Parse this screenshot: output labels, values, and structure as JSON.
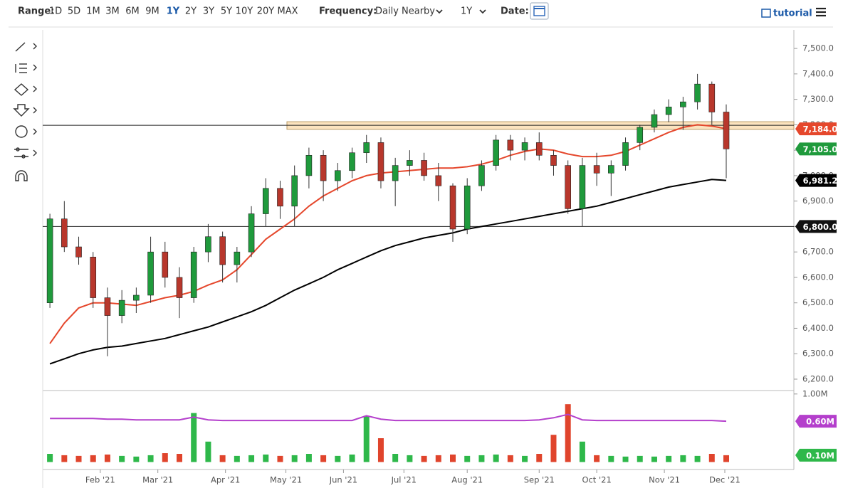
{
  "toolbar": {
    "range_label": "Range:",
    "ranges": [
      "1D",
      "5D",
      "1M",
      "3M",
      "6M",
      "9M",
      "1Y",
      "2Y",
      "3Y",
      "5Y",
      "10Y",
      "20Y",
      "MAX"
    ],
    "frequency_label": "Frequency:",
    "frequency": "Daily Nearby",
    "period": "1Y",
    "date_label": "Date:",
    "tutorial": "tutorial"
  },
  "chart_data": {
    "type": "candlestick",
    "up_color": "#1f9a3c",
    "down_color": "#b8372c",
    "candles": [
      [
        6500,
        6850,
        6480,
        6830
      ],
      [
        6830,
        6900,
        6700,
        6720
      ],
      [
        6720,
        6760,
        6650,
        6680
      ],
      [
        6680,
        6700,
        6480,
        6520
      ],
      [
        6520,
        6560,
        6290,
        6450
      ],
      [
        6450,
        6550,
        6420,
        6510
      ],
      [
        6510,
        6560,
        6460,
        6530
      ],
      [
        6530,
        6760,
        6500,
        6700
      ],
      [
        6700,
        6740,
        6560,
        6600
      ],
      [
        6600,
        6640,
        6440,
        6520
      ],
      [
        6520,
        6720,
        6500,
        6700
      ],
      [
        6700,
        6810,
        6660,
        6760
      ],
      [
        6760,
        6780,
        6580,
        6650
      ],
      [
        6650,
        6720,
        6580,
        6700
      ],
      [
        6700,
        6880,
        6680,
        6850
      ],
      [
        6850,
        6990,
        6800,
        6950
      ],
      [
        6950,
        6980,
        6830,
        6880
      ],
      [
        6880,
        7040,
        6800,
        7000
      ],
      [
        7000,
        7110,
        6950,
        7080
      ],
      [
        7080,
        7100,
        6900,
        6980
      ],
      [
        6980,
        7050,
        6940,
        7020
      ],
      [
        7020,
        7110,
        6990,
        7090
      ],
      [
        7090,
        7160,
        7050,
        7130
      ],
      [
        7130,
        7150,
        6950,
        6980
      ],
      [
        6980,
        7070,
        6880,
        7040
      ],
      [
        7040,
        7100,
        7000,
        7060
      ],
      [
        7060,
        7090,
        6980,
        7000
      ],
      [
        7000,
        7050,
        6900,
        6960
      ],
      [
        6960,
        6970,
        6740,
        6790
      ],
      [
        6790,
        6990,
        6770,
        6960
      ],
      [
        6960,
        7060,
        6940,
        7040
      ],
      [
        7040,
        7160,
        7020,
        7140
      ],
      [
        7140,
        7160,
        7060,
        7100
      ],
      [
        7100,
        7150,
        7060,
        7130
      ],
      [
        7130,
        7170,
        7060,
        7080
      ],
      [
        7080,
        7100,
        7000,
        7040
      ],
      [
        7040,
        7060,
        6850,
        6870
      ],
      [
        6870,
        7070,
        6800,
        7040
      ],
      [
        7040,
        7090,
        6960,
        7010
      ],
      [
        7010,
        7060,
        6920,
        7040
      ],
      [
        7040,
        7150,
        7020,
        7130
      ],
      [
        7130,
        7200,
        7100,
        7190
      ],
      [
        7190,
        7260,
        7170,
        7240
      ],
      [
        7240,
        7300,
        7210,
        7270
      ],
      [
        7270,
        7310,
        7180,
        7290
      ],
      [
        7290,
        7400,
        7260,
        7360
      ],
      [
        7360,
        7370,
        7200,
        7250
      ],
      [
        7250,
        7280,
        6990,
        7105
      ]
    ],
    "last_close_label": "7,105.0",
    "series": [
      {
        "color": "#e5472c",
        "last_label": "7,184.0",
        "values": [
          6340,
          6420,
          6480,
          6500,
          6500,
          6495,
          6490,
          6505,
          6520,
          6530,
          6545,
          6570,
          6590,
          6630,
          6690,
          6750,
          6790,
          6830,
          6880,
          6920,
          6950,
          6980,
          7000,
          7010,
          7015,
          7020,
          7025,
          7030,
          7030,
          7035,
          7045,
          7060,
          7080,
          7095,
          7105,
          7100,
          7085,
          7075,
          7075,
          7080,
          7095,
          7120,
          7145,
          7170,
          7190,
          7200,
          7195,
          7184
        ]
      },
      {
        "color": "#000000",
        "last_label": "6,981.2",
        "values": [
          6260,
          6280,
          6300,
          6315,
          6325,
          6330,
          6340,
          6350,
          6360,
          6375,
          6390,
          6405,
          6425,
          6445,
          6465,
          6490,
          6520,
          6550,
          6575,
          6600,
          6630,
          6655,
          6680,
          6705,
          6725,
          6740,
          6755,
          6765,
          6775,
          6790,
          6800,
          6810,
          6820,
          6830,
          6840,
          6850,
          6860,
          6870,
          6880,
          6895,
          6910,
          6925,
          6940,
          6955,
          6965,
          6975,
          6985,
          6981.2
        ]
      }
    ],
    "zone": {
      "range": [
        7182,
        7212
      ],
      "color": "#fbe3bf"
    },
    "hlines": [
      {
        "value": 7198
      },
      {
        "value": 6800,
        "label": "6,800.0"
      }
    ],
    "ylim": [
      6158,
      7573
    ],
    "yticks": [
      {
        "value": 6200,
        "label": "6,200.0"
      },
      {
        "value": 6300,
        "label": "6,300.0"
      },
      {
        "value": 6400,
        "label": "6,400.0"
      },
      {
        "value": 6500,
        "label": "6,500.0"
      },
      {
        "value": 6600,
        "label": "6,600.0"
      },
      {
        "value": 6700,
        "label": "6,700.0"
      },
      {
        "value": 6800,
        "label": "6,800.0"
      },
      {
        "value": 6900,
        "label": "6,900.0"
      },
      {
        "value": 7000,
        "label": "7,000.0"
      },
      {
        "value": 7100,
        "label": "7,100.0"
      },
      {
        "value": 7200,
        "label": "7,200.0"
      },
      {
        "value": 7300,
        "label": "7,300.0"
      },
      {
        "value": 7400,
        "label": "7,400.0"
      },
      {
        "value": 7500,
        "label": "7,500.0"
      }
    ],
    "xlim": [
      0,
      52.2
    ],
    "xticks": [
      {
        "value": 4.0,
        "label": "Feb '21"
      },
      {
        "value": 8.0,
        "label": "Mar '21"
      },
      {
        "value": 12.7,
        "label": "Apr '21"
      },
      {
        "value": 16.9,
        "label": "May '21"
      },
      {
        "value": 20.9,
        "label": "Jun '21"
      },
      {
        "value": 25.1,
        "label": "Jul '21"
      },
      {
        "value": 29.5,
        "label": "Aug '21"
      },
      {
        "value": 34.5,
        "label": "Sep '21"
      },
      {
        "value": 38.5,
        "label": "Oct '21"
      },
      {
        "value": 43.2,
        "label": "Nov '21"
      },
      {
        "value": 47.4,
        "label": "Dec '21"
      }
    ],
    "volume": {
      "values": [
        0.12,
        0.1,
        0.09,
        0.1,
        0.11,
        0.09,
        0.08,
        0.1,
        0.13,
        0.12,
        0.72,
        0.3,
        0.1,
        0.09,
        0.1,
        0.11,
        0.09,
        0.1,
        0.12,
        0.1,
        0.09,
        0.11,
        0.68,
        0.35,
        0.12,
        0.1,
        0.09,
        0.1,
        0.11,
        0.09,
        0.1,
        0.11,
        0.1,
        0.09,
        0.12,
        0.4,
        0.85,
        0.3,
        0.1,
        0.09,
        0.08,
        0.09,
        0.08,
        0.09,
        0.1,
        0.09,
        0.12,
        0.1
      ],
      "last_label": "0.10M",
      "ma": {
        "color": "#b43fcc",
        "last_label": "0.60M",
        "values": [
          0.64,
          0.64,
          0.64,
          0.64,
          0.63,
          0.63,
          0.62,
          0.62,
          0.62,
          0.62,
          0.66,
          0.62,
          0.61,
          0.61,
          0.61,
          0.61,
          0.61,
          0.61,
          0.61,
          0.61,
          0.61,
          0.61,
          0.68,
          0.63,
          0.61,
          0.61,
          0.61,
          0.61,
          0.61,
          0.61,
          0.61,
          0.61,
          0.61,
          0.61,
          0.62,
          0.65,
          0.7,
          0.62,
          0.61,
          0.61,
          0.61,
          0.61,
          0.61,
          0.61,
          0.61,
          0.61,
          0.61,
          0.6
        ]
      },
      "ylim": [
        -0.11,
        1.04
      ],
      "yticks": [
        {
          "value": 1.0,
          "label": "1.00M"
        }
      ]
    }
  }
}
